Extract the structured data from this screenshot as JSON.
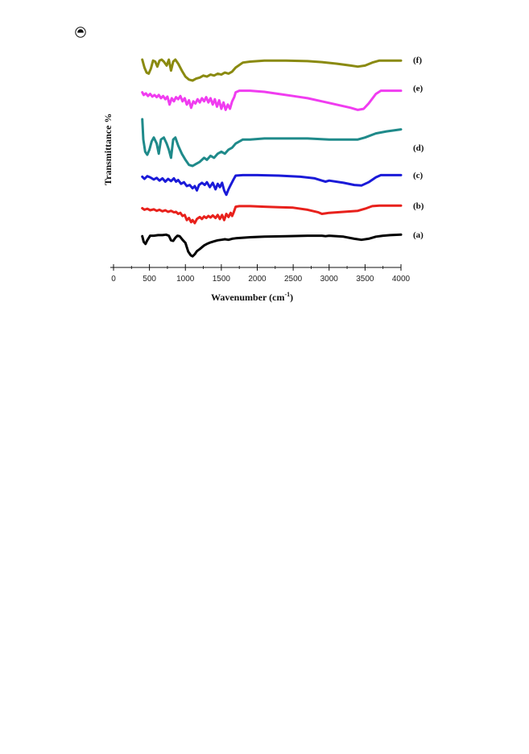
{
  "page_symbol": "copyright-mark",
  "chart_data": {
    "type": "line",
    "title": "",
    "xlabel": "Wavenumber (cm",
    "xlabel_superscript": "-1",
    "xlabel_close": ")",
    "ylabel": "Transmittance %",
    "xlim": [
      0,
      4000
    ],
    "x_ticks": [
      0,
      500,
      1000,
      1500,
      2000,
      2500,
      3000,
      3500,
      4000
    ],
    "y_ticks_shown": false,
    "grid": false,
    "legend": "none",
    "series": [
      {
        "label": "(a)",
        "color": "#000000",
        "offset": 0,
        "points": [
          [
            400,
            95
          ],
          [
            420,
            84
          ],
          [
            445,
            80
          ],
          [
            470,
            87
          ],
          [
            510,
            96
          ],
          [
            560,
            96
          ],
          [
            620,
            97
          ],
          [
            680,
            97
          ],
          [
            730,
            98
          ],
          [
            770,
            96
          ],
          [
            800,
            87
          ],
          [
            830,
            86
          ],
          [
            860,
            92
          ],
          [
            890,
            96
          ],
          [
            920,
            95
          ],
          [
            960,
            88
          ],
          [
            1000,
            82
          ],
          [
            1040,
            65
          ],
          [
            1075,
            58
          ],
          [
            1100,
            56
          ],
          [
            1130,
            60
          ],
          [
            1160,
            66
          ],
          [
            1200,
            70
          ],
          [
            1260,
            77
          ],
          [
            1300,
            80
          ],
          [
            1350,
            83
          ],
          [
            1400,
            85
          ],
          [
            1450,
            87
          ],
          [
            1500,
            88
          ],
          [
            1550,
            89
          ],
          [
            1600,
            88
          ],
          [
            1650,
            90
          ],
          [
            1700,
            91
          ],
          [
            1800,
            92
          ],
          [
            1900,
            93
          ],
          [
            2100,
            94
          ],
          [
            2400,
            95
          ],
          [
            2700,
            96
          ],
          [
            2900,
            96
          ],
          [
            2950,
            95
          ],
          [
            3000,
            96
          ],
          [
            3200,
            94
          ],
          [
            3350,
            90
          ],
          [
            3450,
            88
          ],
          [
            3550,
            90
          ],
          [
            3650,
            94
          ],
          [
            3750,
            96
          ],
          [
            3850,
            97
          ],
          [
            4000,
            98
          ]
        ]
      },
      {
        "label": "(b)",
        "color": "#e8211c",
        "offset": 0,
        "points": [
          [
            400,
            93
          ],
          [
            430,
            90
          ],
          [
            470,
            92
          ],
          [
            510,
            89
          ],
          [
            560,
            91
          ],
          [
            600,
            88
          ],
          [
            640,
            90
          ],
          [
            680,
            87
          ],
          [
            720,
            89
          ],
          [
            760,
            86
          ],
          [
            800,
            88
          ],
          [
            840,
            85
          ],
          [
            870,
            86
          ],
          [
            900,
            82
          ],
          [
            930,
            84
          ],
          [
            960,
            78
          ],
          [
            990,
            80
          ],
          [
            1020,
            70
          ],
          [
            1050,
            74
          ],
          [
            1080,
            66
          ],
          [
            1100,
            70
          ],
          [
            1130,
            64
          ],
          [
            1160,
            72
          ],
          [
            1200,
            76
          ],
          [
            1230,
            72
          ],
          [
            1260,
            77
          ],
          [
            1290,
            74
          ],
          [
            1320,
            78
          ],
          [
            1350,
            75
          ],
          [
            1380,
            79
          ],
          [
            1420,
            74
          ],
          [
            1450,
            80
          ],
          [
            1480,
            72
          ],
          [
            1510,
            80
          ],
          [
            1540,
            70
          ],
          [
            1570,
            82
          ],
          [
            1600,
            76
          ],
          [
            1630,
            84
          ],
          [
            1650,
            78
          ],
          [
            1670,
            84
          ],
          [
            1700,
            96
          ],
          [
            1750,
            97
          ],
          [
            1900,
            97
          ],
          [
            2100,
            96
          ],
          [
            2300,
            95
          ],
          [
            2500,
            94
          ],
          [
            2700,
            90
          ],
          [
            2850,
            85
          ],
          [
            2900,
            82
          ],
          [
            2950,
            83
          ],
          [
            3000,
            84
          ],
          [
            3200,
            86
          ],
          [
            3400,
            88
          ],
          [
            3500,
            92
          ],
          [
            3600,
            97
          ],
          [
            3700,
            98
          ],
          [
            4000,
            98
          ]
        ]
      },
      {
        "label": "(c)",
        "color": "#1a1ad8",
        "offset": 0,
        "points": [
          [
            400,
            95
          ],
          [
            430,
            91
          ],
          [
            470,
            96
          ],
          [
            510,
            94
          ],
          [
            560,
            90
          ],
          [
            600,
            93
          ],
          [
            640,
            88
          ],
          [
            680,
            92
          ],
          [
            720,
            86
          ],
          [
            760,
            91
          ],
          [
            800,
            87
          ],
          [
            840,
            92
          ],
          [
            870,
            86
          ],
          [
            900,
            89
          ],
          [
            940,
            82
          ],
          [
            980,
            85
          ],
          [
            1020,
            78
          ],
          [
            1060,
            80
          ],
          [
            1100,
            74
          ],
          [
            1130,
            78
          ],
          [
            1160,
            70
          ],
          [
            1190,
            80
          ],
          [
            1230,
            84
          ],
          [
            1270,
            80
          ],
          [
            1300,
            85
          ],
          [
            1340,
            76
          ],
          [
            1380,
            84
          ],
          [
            1420,
            72
          ],
          [
            1450,
            82
          ],
          [
            1480,
            76
          ],
          [
            1510,
            84
          ],
          [
            1540,
            70
          ],
          [
            1570,
            62
          ],
          [
            1600,
            72
          ],
          [
            1630,
            80
          ],
          [
            1670,
            90
          ],
          [
            1700,
            97
          ],
          [
            1800,
            98
          ],
          [
            2000,
            98
          ],
          [
            2300,
            97
          ],
          [
            2600,
            95
          ],
          [
            2800,
            92
          ],
          [
            2900,
            88
          ],
          [
            2950,
            86
          ],
          [
            3000,
            88
          ],
          [
            3200,
            84
          ],
          [
            3350,
            80
          ],
          [
            3450,
            79
          ],
          [
            3550,
            85
          ],
          [
            3650,
            94
          ],
          [
            3720,
            98
          ],
          [
            4000,
            98
          ]
        ]
      },
      {
        "label": "(d)",
        "color": "#1f8a8a",
        "offset": 0,
        "points": [
          [
            400,
            100
          ],
          [
            415,
            80
          ],
          [
            440,
            68
          ],
          [
            470,
            65
          ],
          [
            500,
            70
          ],
          [
            530,
            78
          ],
          [
            560,
            82
          ],
          [
            600,
            76
          ],
          [
            630,
            66
          ],
          [
            660,
            80
          ],
          [
            700,
            82
          ],
          [
            740,
            76
          ],
          [
            770,
            70
          ],
          [
            800,
            62
          ],
          [
            830,
            80
          ],
          [
            860,
            82
          ],
          [
            900,
            74
          ],
          [
            950,
            66
          ],
          [
            1000,
            60
          ],
          [
            1050,
            55
          ],
          [
            1100,
            54
          ],
          [
            1150,
            56
          ],
          [
            1200,
            58
          ],
          [
            1260,
            62
          ],
          [
            1300,
            60
          ],
          [
            1350,
            64
          ],
          [
            1400,
            62
          ],
          [
            1450,
            66
          ],
          [
            1500,
            68
          ],
          [
            1550,
            66
          ],
          [
            1600,
            70
          ],
          [
            1650,
            72
          ],
          [
            1700,
            76
          ],
          [
            1800,
            80
          ],
          [
            1900,
            80
          ],
          [
            2100,
            81
          ],
          [
            2400,
            81
          ],
          [
            2700,
            81
          ],
          [
            3000,
            80
          ],
          [
            3200,
            80
          ],
          [
            3400,
            80
          ],
          [
            3500,
            82
          ],
          [
            3650,
            86
          ],
          [
            3800,
            88
          ],
          [
            4000,
            90
          ]
        ]
      },
      {
        "label": "(e)",
        "color": "#f03cf0",
        "offset": 0,
        "points": [
          [
            400,
            93
          ],
          [
            420,
            88
          ],
          [
            450,
            91
          ],
          [
            480,
            86
          ],
          [
            510,
            90
          ],
          [
            540,
            85
          ],
          [
            570,
            88
          ],
          [
            600,
            84
          ],
          [
            630,
            88
          ],
          [
            660,
            82
          ],
          [
            690,
            86
          ],
          [
            720,
            80
          ],
          [
            750,
            85
          ],
          [
            780,
            70
          ],
          [
            810,
            82
          ],
          [
            840,
            76
          ],
          [
            870,
            84
          ],
          [
            900,
            80
          ],
          [
            930,
            86
          ],
          [
            960,
            76
          ],
          [
            990,
            82
          ],
          [
            1020,
            70
          ],
          [
            1050,
            78
          ],
          [
            1080,
            64
          ],
          [
            1110,
            76
          ],
          [
            1140,
            72
          ],
          [
            1170,
            80
          ],
          [
            1200,
            74
          ],
          [
            1230,
            82
          ],
          [
            1260,
            76
          ],
          [
            1290,
            84
          ],
          [
            1320,
            74
          ],
          [
            1350,
            82
          ],
          [
            1380,
            70
          ],
          [
            1410,
            80
          ],
          [
            1440,
            66
          ],
          [
            1470,
            78
          ],
          [
            1500,
            62
          ],
          [
            1530,
            74
          ],
          [
            1560,
            60
          ],
          [
            1590,
            70
          ],
          [
            1620,
            62
          ],
          [
            1650,
            76
          ],
          [
            1680,
            84
          ],
          [
            1700,
            93
          ],
          [
            1750,
            96
          ],
          [
            1900,
            96
          ],
          [
            2100,
            94
          ],
          [
            2300,
            90
          ],
          [
            2500,
            86
          ],
          [
            2700,
            82
          ],
          [
            2900,
            76
          ],
          [
            3100,
            70
          ],
          [
            3300,
            64
          ],
          [
            3400,
            60
          ],
          [
            3480,
            62
          ],
          [
            3550,
            72
          ],
          [
            3650,
            90
          ],
          [
            3720,
            96
          ],
          [
            4000,
            96
          ]
        ]
      },
      {
        "label": "(f)",
        "color": "#8a8a10",
        "offset": 0,
        "points": [
          [
            400,
            100
          ],
          [
            430,
            84
          ],
          [
            460,
            74
          ],
          [
            490,
            72
          ],
          [
            520,
            82
          ],
          [
            550,
            98
          ],
          [
            580,
            96
          ],
          [
            610,
            86
          ],
          [
            640,
            98
          ],
          [
            670,
            100
          ],
          [
            700,
            96
          ],
          [
            740,
            88
          ],
          [
            770,
            100
          ],
          [
            800,
            78
          ],
          [
            830,
            96
          ],
          [
            860,
            100
          ],
          [
            900,
            92
          ],
          [
            950,
            78
          ],
          [
            1000,
            66
          ],
          [
            1050,
            60
          ],
          [
            1100,
            58
          ],
          [
            1150,
            62
          ],
          [
            1200,
            64
          ],
          [
            1250,
            68
          ],
          [
            1300,
            66
          ],
          [
            1350,
            70
          ],
          [
            1400,
            68
          ],
          [
            1450,
            72
          ],
          [
            1500,
            70
          ],
          [
            1550,
            74
          ],
          [
            1600,
            72
          ],
          [
            1650,
            76
          ],
          [
            1700,
            84
          ],
          [
            1800,
            94
          ],
          [
            1900,
            96
          ],
          [
            2100,
            98
          ],
          [
            2400,
            98
          ],
          [
            2700,
            97
          ],
          [
            2900,
            95
          ],
          [
            3100,
            92
          ],
          [
            3300,
            88
          ],
          [
            3400,
            86
          ],
          [
            3500,
            88
          ],
          [
            3600,
            94
          ],
          [
            3700,
            98
          ],
          [
            4000,
            98
          ]
        ]
      }
    ]
  }
}
